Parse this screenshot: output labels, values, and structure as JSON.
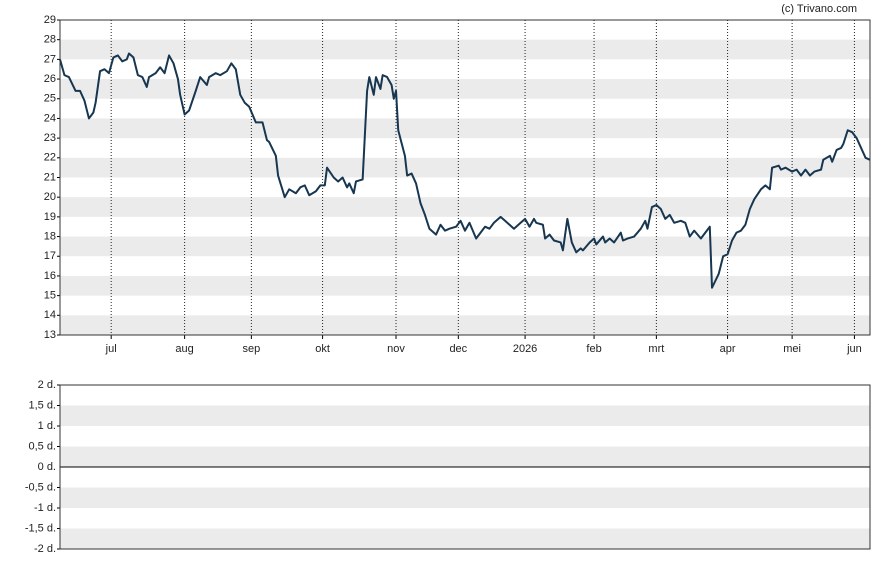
{
  "watermark": "(c) Trivano.com",
  "chart_data": [
    {
      "type": "line",
      "x": [
        0,
        2,
        4,
        7,
        9,
        11,
        13,
        15,
        16,
        18,
        20,
        22,
        24,
        26,
        28,
        30,
        31,
        33,
        35,
        37,
        39,
        40,
        43,
        45,
        47,
        49,
        51,
        53,
        54,
        56,
        58,
        61,
        63,
        66,
        67,
        70,
        72,
        75,
        77,
        79,
        81,
        83,
        85,
        88,
        91,
        93,
        94,
        97,
        98,
        101,
        103,
        106,
        108,
        110,
        112,
        115,
        117,
        119,
        120,
        123,
        125,
        127,
        129,
        130,
        132,
        133,
        136,
        138,
        139,
        141,
        142,
        144,
        145,
        147,
        149,
        150,
        151,
        152,
        155,
        156,
        158,
        160,
        162,
        164,
        166,
        169,
        171,
        173,
        175,
        178,
        180,
        182,
        184,
        187,
        189,
        191,
        193,
        195,
        198,
        200,
        202,
        204,
        207,
        209,
        211,
        213,
        214,
        217,
        218,
        220,
        222,
        225,
        226,
        228,
        230,
        232,
        234,
        235,
        238,
        240,
        241,
        244,
        245,
        247,
        249,
        252,
        253,
        255,
        258,
        261,
        263,
        264,
        266,
        268,
        270,
        272,
        274,
        276,
        279,
        281,
        283,
        285,
        288,
        290,
        292,
        293,
        296,
        298,
        300,
        302,
        304,
        306,
        308,
        310,
        312,
        315,
        317,
        319,
        320,
        323,
        324,
        326,
        329,
        331,
        333,
        335,
        337,
        339,
        342,
        343,
        346,
        347,
        349,
        351,
        352,
        354,
        356,
        358,
        360,
        362,
        364
      ],
      "series": [
        {
          "color": "#173650",
          "values": [
            27.0,
            26.2,
            26.1,
            25.4,
            25.4,
            24.9,
            24.0,
            24.3,
            24.8,
            26.4,
            26.5,
            26.3,
            27.1,
            27.2,
            26.9,
            27.0,
            27.3,
            27.1,
            26.2,
            26.1,
            25.6,
            26.1,
            26.3,
            26.6,
            26.3,
            27.2,
            26.8,
            26.0,
            25.2,
            24.2,
            24.4,
            25.4,
            26.1,
            25.7,
            26.1,
            26.3,
            26.2,
            26.4,
            26.8,
            26.5,
            25.2,
            24.8,
            24.6,
            23.8,
            23.8,
            22.9,
            22.8,
            22.1,
            21.1,
            20.0,
            20.4,
            20.2,
            20.5,
            20.6,
            20.1,
            20.3,
            20.6,
            20.6,
            21.5,
            21.0,
            20.8,
            21.0,
            20.5,
            20.7,
            20.2,
            20.8,
            20.9,
            25.4,
            26.1,
            25.2,
            26.1,
            25.5,
            26.2,
            26.1,
            25.7,
            25.0,
            25.4,
            23.4,
            22.1,
            21.1,
            21.2,
            20.7,
            19.7,
            19.1,
            18.4,
            18.1,
            18.6,
            18.3,
            18.4,
            18.5,
            18.8,
            18.3,
            18.7,
            17.9,
            18.2,
            18.5,
            18.4,
            18.7,
            19.0,
            18.8,
            18.6,
            18.4,
            18.7,
            18.9,
            18.5,
            18.9,
            18.7,
            18.6,
            17.9,
            18.1,
            17.8,
            17.7,
            17.3,
            18.9,
            17.7,
            17.2,
            17.4,
            17.3,
            17.7,
            17.9,
            17.6,
            18.0,
            17.7,
            17.9,
            17.7,
            18.2,
            17.8,
            17.9,
            18.0,
            18.4,
            18.8,
            18.4,
            19.5,
            19.6,
            19.4,
            18.9,
            19.1,
            18.7,
            18.8,
            18.7,
            18.0,
            18.3,
            17.9,
            18.2,
            18.5,
            15.4,
            16.1,
            17.0,
            17.1,
            17.8,
            18.2,
            18.3,
            18.6,
            19.4,
            19.9,
            20.4,
            20.6,
            20.4,
            21.5,
            21.6,
            21.4,
            21.5,
            21.3,
            21.4,
            21.1,
            21.4,
            21.1,
            21.3,
            21.4,
            21.9,
            22.1,
            21.8,
            22.4,
            22.5,
            22.7,
            23.4,
            23.3,
            23.0,
            22.5,
            22.0,
            21.9
          ]
        }
      ],
      "xlim": [
        0,
        364
      ],
      "xticks": [
        {
          "value": 23,
          "label": "jul"
        },
        {
          "value": 56,
          "label": "aug"
        },
        {
          "value": 86,
          "label": "sep"
        },
        {
          "value": 118,
          "label": "okt"
        },
        {
          "value": 151,
          "label": "nov"
        },
        {
          "value": 179,
          "label": "dec"
        },
        {
          "value": 209,
          "label": "2026"
        },
        {
          "value": 240,
          "label": "feb"
        },
        {
          "value": 268,
          "label": "mrt"
        },
        {
          "value": 300,
          "label": "apr"
        },
        {
          "value": 329,
          "label": "mei"
        },
        {
          "value": 357,
          "label": "jun"
        }
      ],
      "ylim": [
        13,
        29
      ],
      "yticks": [
        13,
        14,
        15,
        16,
        17,
        18,
        19,
        20,
        21,
        22,
        23,
        24,
        25,
        26,
        27,
        28,
        29
      ],
      "grid": true
    },
    {
      "type": "line",
      "series": [],
      "ylim": [
        -2,
        2
      ],
      "yticks": [
        {
          "value": -2,
          "label": "-2 d."
        },
        {
          "value": -1.5,
          "label": "-1,5 d."
        },
        {
          "value": -1,
          "label": "-1 d."
        },
        {
          "value": -0.5,
          "label": "-0,5 d."
        },
        {
          "value": 0,
          "label": "0 d."
        },
        {
          "value": 0.5,
          "label": "0,5 d."
        },
        {
          "value": 1,
          "label": "1 d."
        },
        {
          "value": 1.5,
          "label": "1,5 d."
        },
        {
          "value": 2,
          "label": "2 d."
        }
      ],
      "grid": true
    }
  ]
}
